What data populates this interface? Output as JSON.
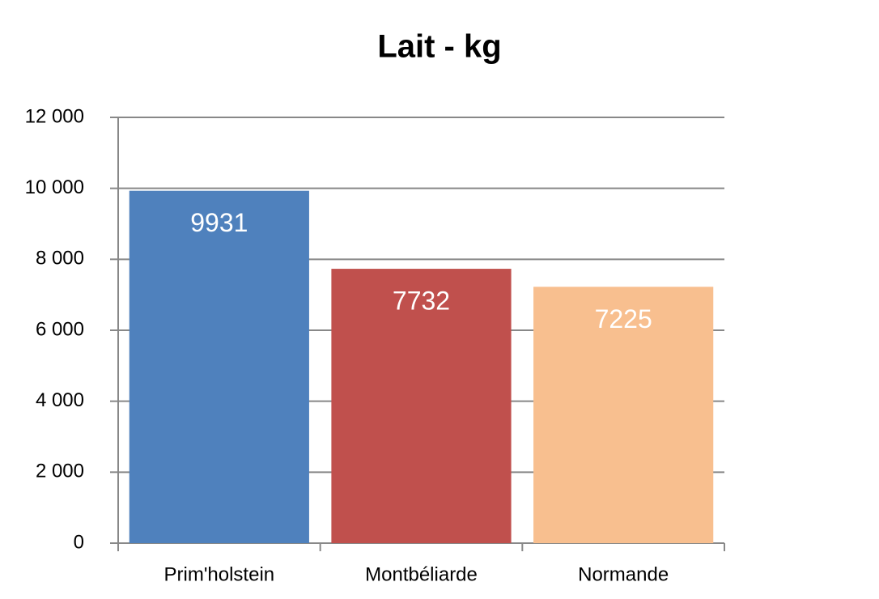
{
  "chart_data": {
    "type": "bar",
    "title": "Lait - kg",
    "categories": [
      "Prim'holstein",
      "Montbéliarde",
      "Normande"
    ],
    "values": [
      9931,
      7732,
      7225
    ],
    "colors": [
      "#4f81bd",
      "#c0504d",
      "#f8bf8f"
    ],
    "ylim": [
      0,
      12000
    ],
    "yticks": [
      0,
      {
        "value": 2000,
        "label": "2 000"
      },
      {
        "value": 4000,
        "label": "4 000"
      },
      {
        "value": 6000,
        "label": "6 000"
      },
      {
        "value": 8000,
        "label": "8 000"
      },
      {
        "value": 10000,
        "label": "10 000"
      },
      {
        "value": 12000,
        "label": "12 000"
      }
    ],
    "grid": true,
    "data_labels": true
  }
}
